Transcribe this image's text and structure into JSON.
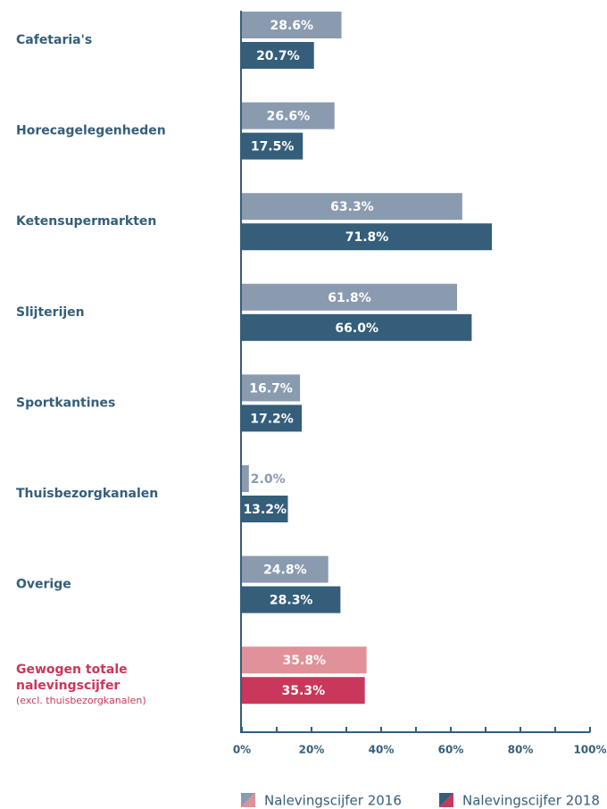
{
  "chart_data": {
    "type": "hbar",
    "categories": [
      "Cafetaria's",
      "Horecagelegenheden",
      "Ketensupermarkten",
      "Slijterijen",
      "Sportkantines",
      "Thuisbezorgkanalen",
      "Overige",
      "Gewogen totale nalevingscijfer"
    ],
    "category_note": "(excl. thuisbezorgkanalen)",
    "highlight_index": 7,
    "series": [
      {
        "name": "Nalevingscijfer 2016",
        "color": "#8a9bb0",
        "highlight_color": "#e0919a",
        "values": [
          28.6,
          26.6,
          63.3,
          61.8,
          16.7,
          2.0,
          24.8,
          35.8
        ],
        "value_labels": [
          "28.6%",
          "26.6%",
          "63.3%",
          "61.8%",
          "16.7%",
          "2.0%",
          "24.8%",
          "35.8%"
        ]
      },
      {
        "name": "Nalevingscijfer 2018",
        "color": "#345e7a",
        "highlight_color": "#c9375a",
        "values": [
          20.7,
          17.5,
          71.8,
          66.0,
          17.2,
          13.2,
          28.3,
          35.3
        ],
        "value_labels": [
          "20.7%",
          "17.5%",
          "71.8%",
          "66.0%",
          "17.2%",
          "13.2%",
          "28.3%",
          "35.3%"
        ]
      }
    ],
    "xlim": [
      0,
      100
    ],
    "xticks": [
      {
        "value": 0,
        "label": "0%"
      },
      {
        "value": 20,
        "label": "20%"
      },
      {
        "value": 40,
        "label": "40%"
      },
      {
        "value": 60,
        "label": "60%"
      },
      {
        "value": 80,
        "label": "80%"
      },
      {
        "value": 100,
        "label": "100%"
      }
    ],
    "xminorticks": [
      10,
      30,
      50,
      70,
      90
    ]
  }
}
